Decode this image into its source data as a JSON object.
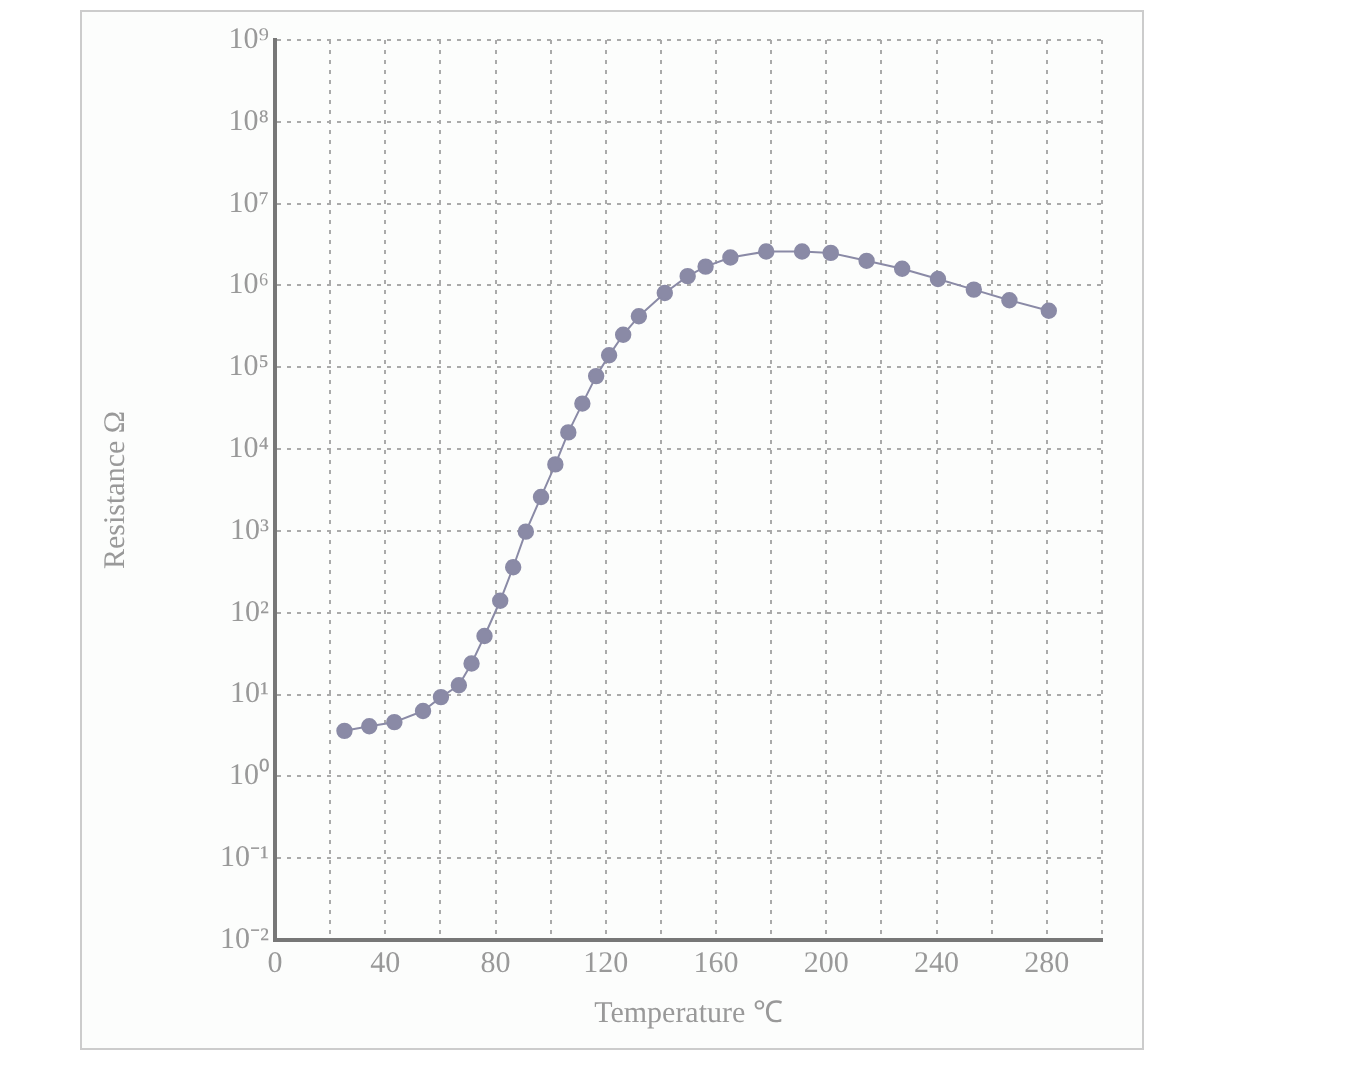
{
  "chart_data": {
    "type": "line",
    "xlabel": "Temperature ℃",
    "ylabel": "Resistance Ω",
    "x": [
      25.2,
      34.2,
      43.3,
      53.7,
      60.2,
      66.7,
      71.3,
      76,
      81.7,
      86.4,
      91,
      96.5,
      101.7,
      106.4,
      111.5,
      116.5,
      121.2,
      126.3,
      132,
      141.4,
      149.7,
      156.2,
      165.2,
      178.2,
      191.2,
      201.6,
      214.6,
      227.5,
      240.5,
      253.5,
      266.4,
      280.7
    ],
    "series": [
      {
        "color": "#8a8aa6",
        "values": [
          3.6,
          4.1,
          4.6,
          6.3,
          9.3,
          13,
          24,
          52,
          140,
          360,
          980,
          2600,
          6500,
          16000,
          36000,
          78000,
          140000,
          250000,
          420000,
          810000,
          1300000,
          1700000,
          2200000,
          2600000,
          2600000,
          2500000,
          2000000,
          1600000,
          1200000,
          890000,
          660000,
          490000
        ]
      }
    ],
    "log": "y",
    "xlim": [
      0,
      300
    ],
    "xticks": [
      0,
      {
        "value": 20,
        "label": null
      },
      40,
      {
        "value": 60,
        "label": null
      },
      80,
      {
        "value": 100,
        "label": null
      },
      120,
      {
        "value": 140,
        "label": null
      },
      160,
      {
        "value": 180,
        "label": null
      },
      200,
      {
        "value": 220,
        "label": null
      },
      240,
      {
        "value": 260,
        "label": null
      },
      280,
      {
        "value": 300,
        "label": null
      }
    ],
    "ylim": [
      0.01,
      1000000000
    ],
    "yticks": [
      {
        "value": 0.01,
        "label": "10⁻²"
      },
      {
        "value": 0.1,
        "label": "10⁻¹"
      },
      {
        "value": 1,
        "label": "10⁰"
      },
      {
        "value": 10,
        "label": "10¹"
      },
      {
        "value": 100,
        "label": "10²"
      },
      {
        "value": 1000,
        "label": "10³"
      },
      {
        "value": 10000,
        "label": "10⁴"
      },
      {
        "value": 100000,
        "label": "10⁵"
      },
      {
        "value": 1000000,
        "label": "10⁶"
      },
      {
        "value": 10000000,
        "label": "10⁷"
      },
      {
        "value": 100000000,
        "label": "10⁸"
      },
      {
        "value": 1000000000,
        "label": "10⁹"
      }
    ],
    "grid": true,
    "marker": "circle",
    "line_style": "solid",
    "legend": false
  }
}
